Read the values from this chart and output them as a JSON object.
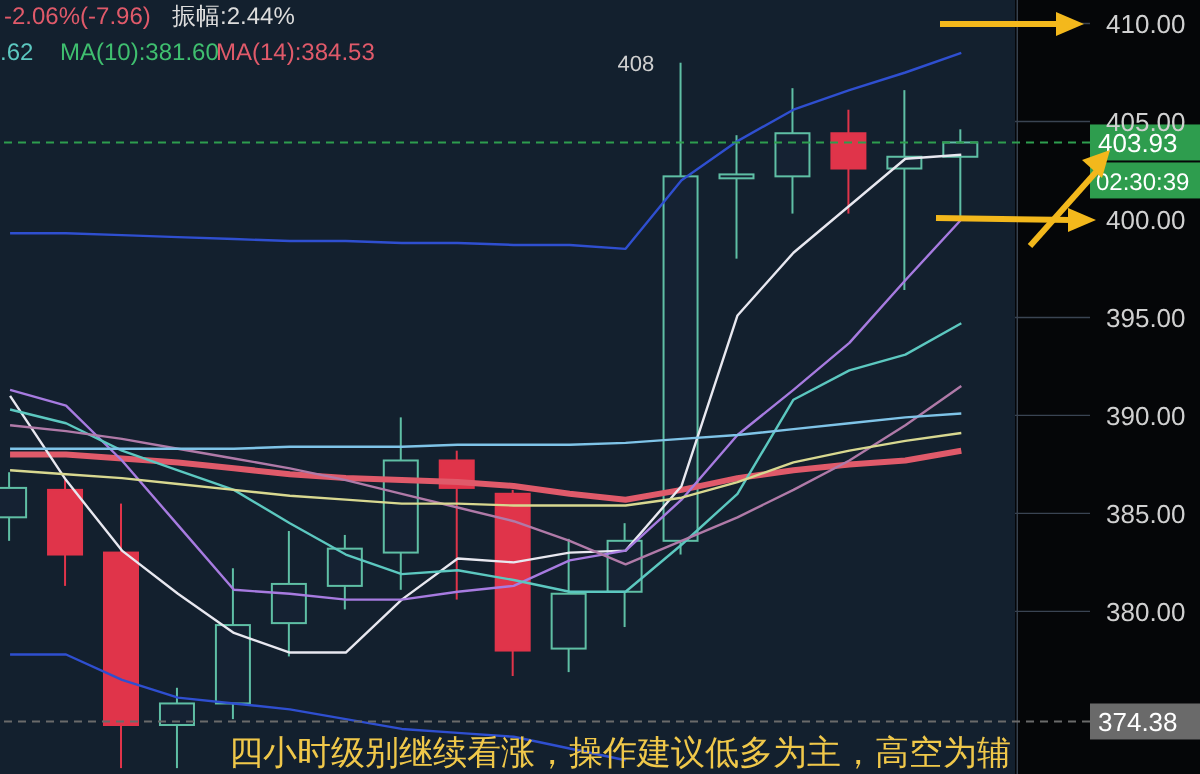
{
  "chart_data": {
    "type": "candlestick",
    "categories": [
      null,
      null,
      null,
      null,
      null,
      null,
      null,
      null,
      null,
      null,
      null,
      null,
      null,
      null,
      null,
      null,
      null,
      null
    ],
    "ohlc": [
      [
        384.8,
        387.1,
        383.6,
        386.3
      ],
      [
        386.2,
        386.7,
        381.3,
        382.9
      ],
      [
        383.0,
        385.5,
        372.0,
        374.2
      ],
      [
        374.2,
        376.1,
        372.0,
        375.3
      ],
      [
        375.3,
        382.2,
        374.5,
        379.3
      ],
      [
        379.4,
        384.1,
        377.7,
        381.4
      ],
      [
        381.3,
        383.9,
        380.1,
        383.2
      ],
      [
        383.0,
        389.9,
        381.1,
        387.7
      ],
      [
        387.7,
        388.2,
        380.6,
        386.3
      ],
      [
        386.0,
        386.2,
        376.7,
        378.0
      ],
      [
        378.1,
        383.7,
        376.9,
        380.9
      ],
      [
        381.0,
        384.5,
        379.2,
        383.6
      ],
      [
        383.6,
        408.0,
        382.9,
        402.2
      ],
      [
        402.1,
        404.3,
        398.0,
        402.3
      ],
      [
        402.2,
        406.7,
        400.3,
        404.4
      ],
      [
        404.4,
        405.6,
        400.3,
        402.6
      ],
      [
        402.6,
        406.6,
        396.4,
        403.2
      ],
      [
        403.2,
        404.6,
        400.0,
        403.93
      ]
    ],
    "colors": [
      "#5fbfa5",
      "#e0344a",
      "#e0344a",
      "#5fbfa5",
      "#5fbfa5",
      "#5fbfa5",
      "#5fbfa5",
      "#5fbfa5",
      "#e0344a",
      "#e0344a",
      "#5fbfa5",
      "#5fbfa5",
      "#5fbfa5",
      "#5fbfa5",
      "#5fbfa5",
      "#e0344a",
      "#5fbfa5",
      "#5fbfa5"
    ],
    "series": [
      {
        "type": "line",
        "color": "#2f4fd0",
        "values": [
          399.3,
          399.3,
          399.2,
          399.1,
          399.0,
          398.9,
          398.9,
          398.8,
          398.8,
          398.7,
          398.7,
          398.5,
          402.0,
          404.0,
          405.6,
          406.6,
          407.5,
          408.5
        ]
      },
      {
        "type": "line",
        "color": "#2f4fd0",
        "values": [
          377.8,
          377.8,
          376.5,
          375.6,
          375.3,
          375.0,
          374.5,
          374.0,
          373.8,
          373.6,
          373.0,
          372.4,
          null,
          null,
          null,
          null,
          null,
          null
        ]
      },
      {
        "type": "line",
        "color": "#e05a6a",
        "values": [
          388.0,
          388.0,
          387.8,
          387.6,
          387.3,
          387.0,
          386.8,
          386.7,
          386.6,
          386.4,
          386.0,
          385.7,
          386.2,
          386.8,
          387.2,
          387.5,
          387.7,
          388.2
        ]
      },
      {
        "type": "line",
        "color": "#e8e8f0",
        "values": [
          391.0,
          386.7,
          383.1,
          380.9,
          378.9,
          377.9,
          377.9,
          380.6,
          382.7,
          382.5,
          383.0,
          383.1,
          386.4,
          395.1,
          398.3,
          400.7,
          403.1,
          403.3
        ]
      },
      {
        "type": "line",
        "color": "#a77be0",
        "values": [
          391.3,
          390.5,
          387.7,
          384.4,
          381.1,
          380.9,
          380.6,
          380.6,
          381.0,
          381.3,
          382.6,
          383.1,
          385.7,
          389.0,
          391.3,
          393.7,
          396.9,
          400.0
        ]
      },
      {
        "type": "line",
        "color": "#5cc8c0",
        "values": [
          390.3,
          389.6,
          388.2,
          387.2,
          386.2,
          384.5,
          382.9,
          381.9,
          382.1,
          381.6,
          381.0,
          381.0,
          383.4,
          386.0,
          390.8,
          392.3,
          393.1,
          394.7
        ]
      },
      {
        "type": "line",
        "color": "#b07aa8",
        "values": [
          389.5,
          389.2,
          388.8,
          388.3,
          387.8,
          387.3,
          386.7,
          386.0,
          385.3,
          384.6,
          383.6,
          382.4,
          383.6,
          384.8,
          386.2,
          387.7,
          389.5,
          391.5
        ]
      },
      {
        "type": "line",
        "color": "#7fc4e8",
        "values": [
          388.3,
          388.3,
          388.3,
          388.3,
          388.3,
          388.4,
          388.4,
          388.4,
          388.5,
          388.5,
          388.5,
          388.6,
          388.8,
          389.0,
          389.3,
          389.6,
          389.9,
          390.1
        ]
      },
      {
        "type": "line",
        "color": "#d8d890",
        "values": [
          387.2,
          387.0,
          386.8,
          386.5,
          386.2,
          385.9,
          385.7,
          385.5,
          385.5,
          385.4,
          385.4,
          385.4,
          385.8,
          386.6,
          387.6,
          388.2,
          388.7,
          389.1
        ]
      }
    ],
    "ylim": [
      371.7,
      411.2
    ],
    "yticks": [
      {
        "value": 380,
        "label": "380.00"
      },
      {
        "value": 385,
        "label": "385.00"
      },
      {
        "value": 390,
        "label": "390.00"
      },
      {
        "value": 395,
        "label": "395.00"
      },
      {
        "value": 400,
        "label": "400.00"
      },
      {
        "value": 405,
        "label": "405.00"
      },
      {
        "value": 410,
        "label": "410.00"
      }
    ],
    "ref_lines": [
      {
        "axis": "y",
        "value": 403.93,
        "label": "403.93",
        "color": "#2e9d4e",
        "line_style": "dashed"
      },
      {
        "axis": "y",
        "value": 374.38,
        "label": "374.38",
        "color": "#6a6a6a",
        "line_style": "dashed"
      }
    ],
    "annotations": [
      "-2.06%(-7.96)",
      "振幅:2.44%",
      ".62",
      "MA(10):381.60",
      "MA(14):384.53",
      "408",
      "02:30:39",
      "四小时级别继续看涨，操作建议低多为主，高空为辅"
    ],
    "grid": true,
    "tick_labels": "y",
    "line_style": "solid",
    "marker": "none"
  }
}
